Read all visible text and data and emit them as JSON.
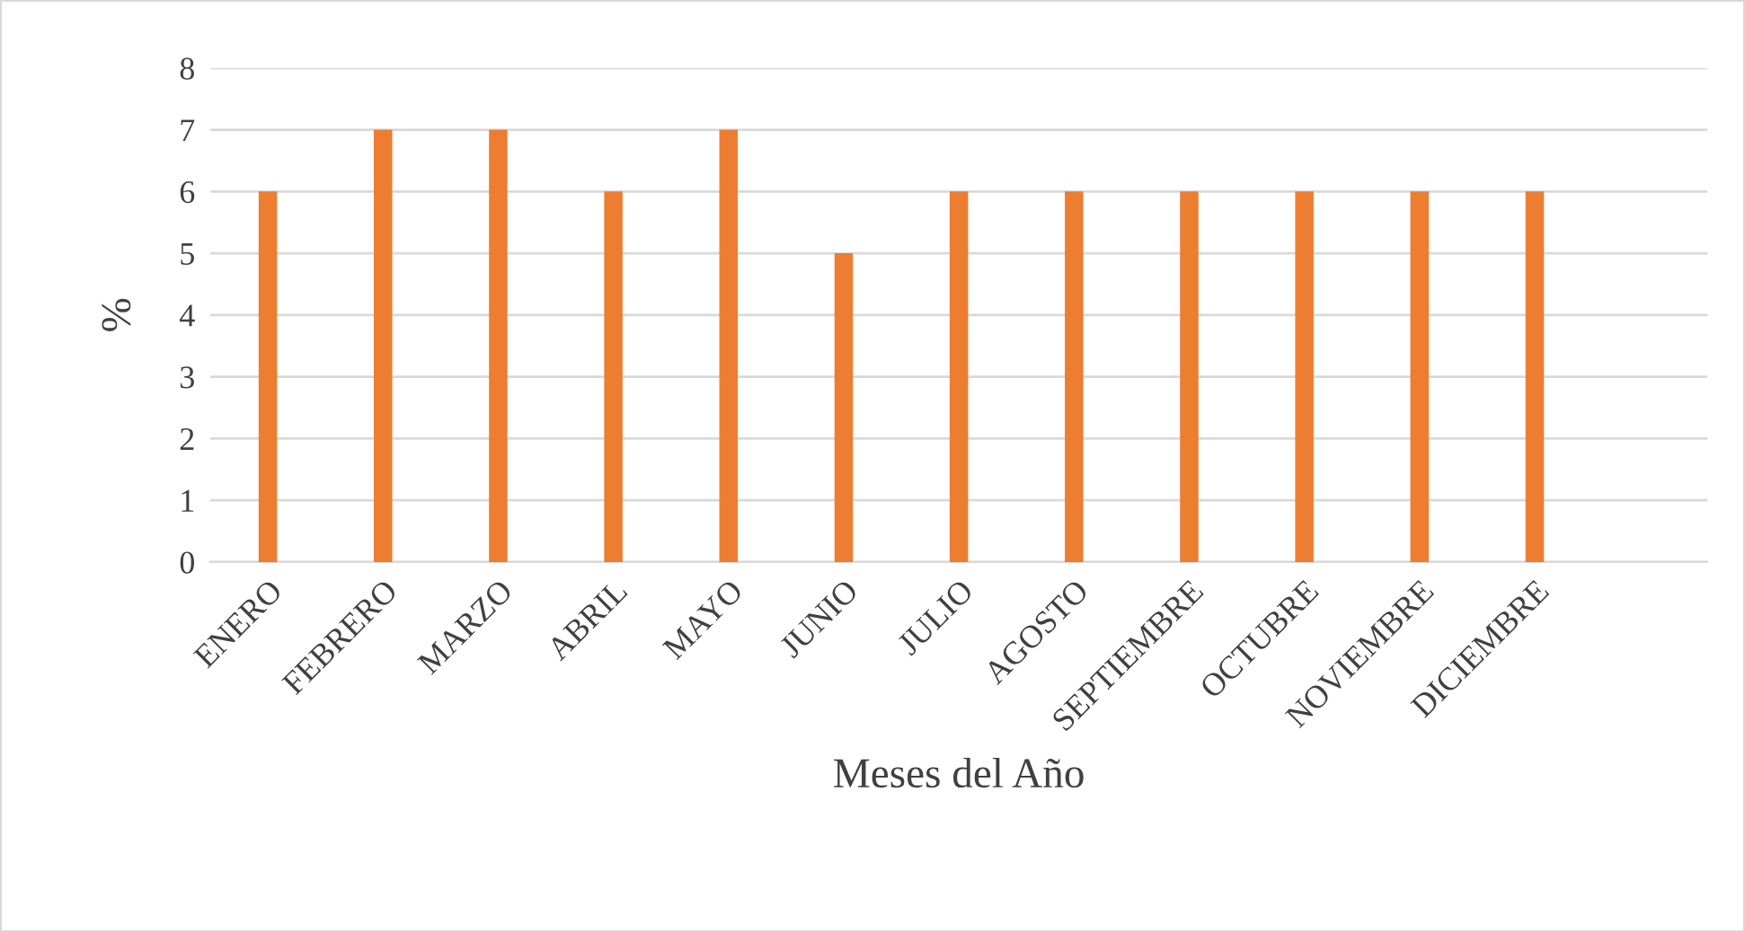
{
  "chart_data": {
    "type": "bar",
    "xlabel": "Meses del Año",
    "ylabel": "%",
    "categories": [
      "ENERO",
      "FEBRERO",
      "MARZO",
      "ABRIL",
      "MAYO",
      "JUNIO",
      "JULIO",
      "AGOSTO",
      "SEPTIEMBRE",
      "OCTUBRE",
      "NOVIEMBRE",
      "DICIEMBRE",
      null
    ],
    "values": [
      6,
      7,
      7,
      6,
      7,
      5,
      6,
      6,
      6,
      6,
      6,
      6,
      null
    ],
    "color": "#ed7d31",
    "ylim": [
      0,
      8
    ],
    "yticks": [
      0,
      1,
      2,
      3,
      4,
      5,
      6,
      7,
      8
    ],
    "grid": "y"
  }
}
